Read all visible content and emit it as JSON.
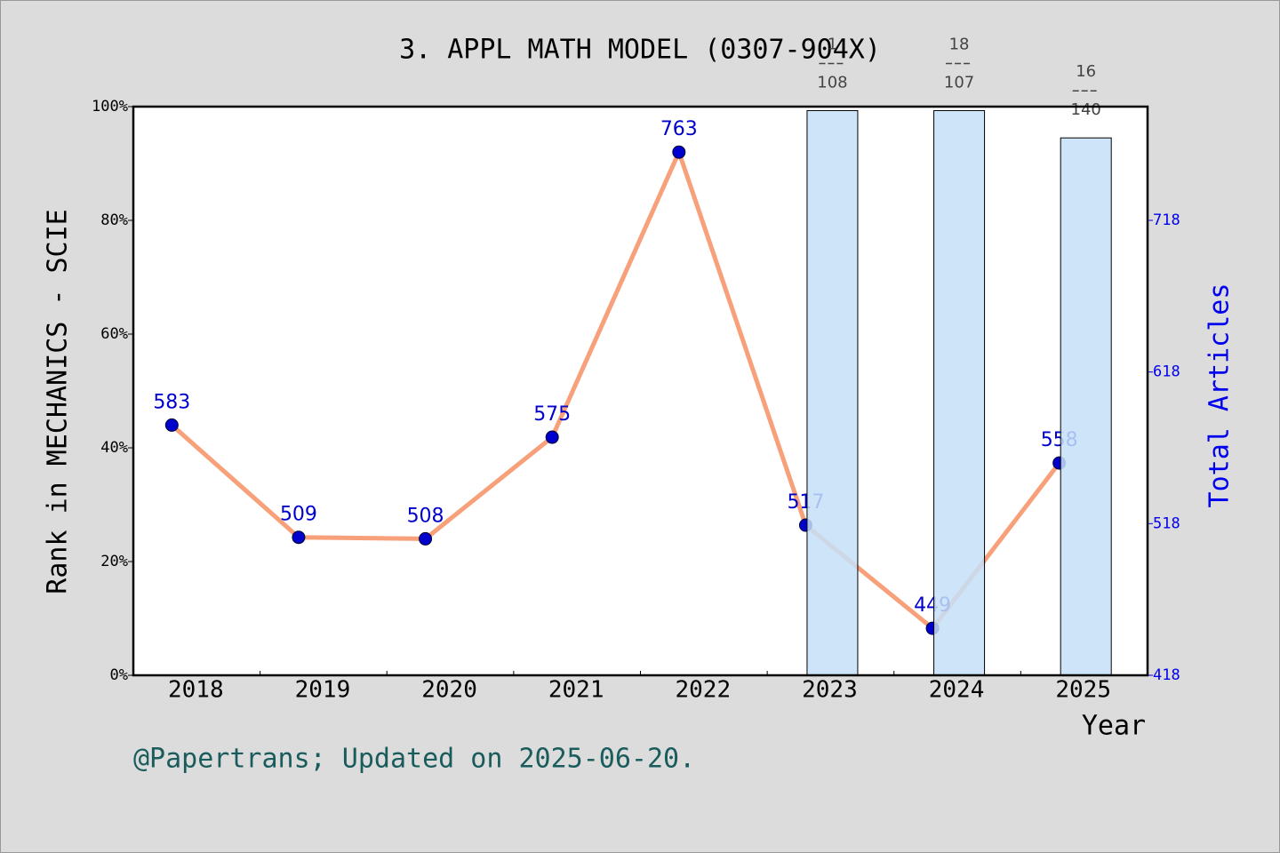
{
  "chart_data": {
    "type": "line",
    "title": "3. APPL MATH MODEL (0307-904X)",
    "xlabel": "Year",
    "ylabel": "Rank in MECHANICS - SCIE",
    "y2label": "Total Articles",
    "footer": "@Papertrans; Updated on 2025-06-20.",
    "categories": [
      "2018",
      "2019",
      "2020",
      "2021",
      "2022",
      "2023",
      "2024",
      "2025"
    ],
    "ylim": [
      0,
      100
    ],
    "yticks": [
      {
        "value": 0,
        "label": "0%"
      },
      {
        "value": 20,
        "label": "20%"
      },
      {
        "value": 40,
        "label": "40%"
      },
      {
        "value": 60,
        "label": "60%"
      },
      {
        "value": 80,
        "label": "80%"
      },
      {
        "value": 100,
        "label": "100%"
      }
    ],
    "y2lim": [
      418,
      793
    ],
    "y2ticks": [
      418,
      518,
      618,
      718
    ],
    "series": [
      {
        "type": "line",
        "axis": "y2",
        "color": "#f7a07a",
        "marker_color": "#0000cc",
        "values": [
          583,
          509,
          508,
          575,
          763,
          517,
          449,
          558
        ]
      },
      {
        "type": "bar",
        "color": "#c6e0f8",
        "values": [
          null,
          null,
          null,
          null,
          null,
          99.3,
          99.3,
          94.5
        ],
        "labels": [
          null,
          null,
          null,
          null,
          null,
          [
            "1",
            "108"
          ],
          [
            "18",
            "107"
          ],
          [
            "16",
            "140"
          ]
        ]
      }
    ]
  }
}
